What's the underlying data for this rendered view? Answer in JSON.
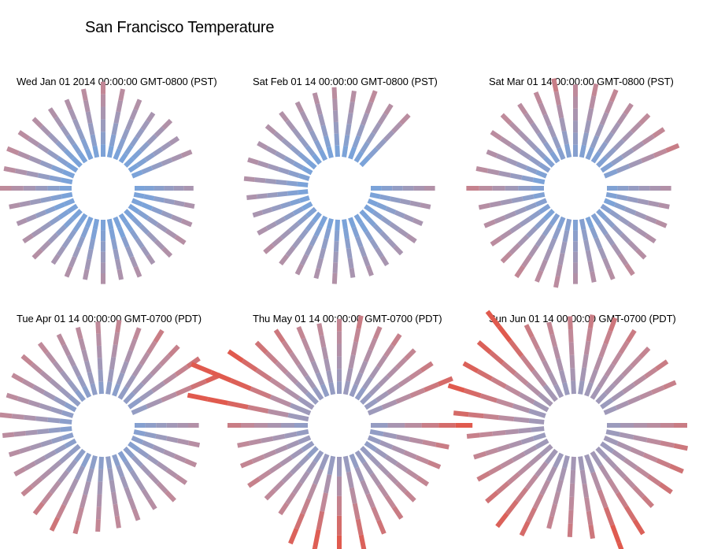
{
  "page": {
    "title": "San Francisco Temperature"
  },
  "colors": {
    "cold": "#7ba3d9",
    "mid": "#9b9bbd",
    "warm": "#c08a9a",
    "hot": "#e05a4e"
  },
  "chart_data": [
    {
      "type": "radial-bar",
      "title": "Wed Jan 01 2014 00:00:00 GMT-0800 (PST)",
      "days": 31,
      "min_temp": [
        46,
        45,
        44,
        46,
        46,
        45,
        44,
        45,
        46,
        45,
        46,
        46,
        45,
        45,
        44,
        46,
        47,
        46,
        45,
        46,
        45,
        46,
        46,
        47,
        47,
        46,
        47,
        46,
        45,
        46,
        47
      ],
      "max_temp": [
        58,
        59,
        60,
        61,
        60,
        58,
        60,
        59,
        60,
        59,
        60,
        58,
        61,
        60,
        59,
        60,
        63,
        62,
        63,
        62,
        61,
        60,
        60,
        62,
        64,
        62,
        60,
        58,
        60,
        58,
        60
      ]
    },
    {
      "type": "radial-bar",
      "title": "Sat Feb 01 14 00:00:00 GMT-0800 (PST)",
      "days": 28,
      "min_temp": [
        47,
        47,
        46,
        47,
        46,
        45,
        46,
        46,
        47,
        47,
        46,
        47,
        48,
        47,
        46,
        46,
        47,
        48,
        47,
        46,
        47,
        47,
        46,
        47,
        47,
        46,
        47,
        46
      ],
      "max_temp": [
        60,
        59,
        58,
        59,
        58,
        58,
        59,
        58,
        60,
        59,
        60,
        60,
        61,
        59,
        58,
        59,
        60,
        60,
        59,
        60,
        60,
        60,
        61,
        62,
        61,
        63,
        61,
        62
      ]
    },
    {
      "type": "radial-bar",
      "title": "Sat Mar 01 14 00:00:00 GMT-0800 (PST)",
      "days": 31,
      "min_temp": [
        48,
        48,
        47,
        49,
        48,
        48,
        47,
        49,
        48,
        49,
        48,
        48,
        47,
        48,
        49,
        48,
        48,
        47,
        48,
        49,
        48,
        48,
        49,
        48,
        49,
        48,
        48,
        48,
        48,
        48,
        48
      ],
      "max_temp": [
        60,
        60,
        61,
        60,
        61,
        63,
        61,
        60,
        60,
        62,
        62,
        64,
        63,
        62,
        61,
        61,
        65,
        62,
        60,
        62,
        63,
        62,
        63,
        66,
        63,
        64,
        64,
        62,
        63,
        64,
        66
      ]
    },
    {
      "type": "radial-bar",
      "title": "Tue Apr 01 14 00:00:00 GMT-0700 (PDT)",
      "days": 30,
      "min_temp": [
        49,
        49,
        50,
        49,
        50,
        49,
        50,
        51,
        50,
        50,
        49,
        50,
        51,
        50,
        50,
        49,
        50,
        51,
        50,
        51,
        50,
        50,
        51,
        50,
        51,
        50,
        51,
        51,
        50,
        51
      ],
      "max_temp": [
        60,
        61,
        62,
        62,
        63,
        61,
        62,
        63,
        64,
        66,
        68,
        66,
        64,
        62,
        61,
        62,
        63,
        62,
        63,
        64,
        63,
        62,
        62,
        63,
        64,
        63,
        66,
        65,
        68,
        72
      ]
    },
    {
      "type": "radial-bar",
      "title": "Thu May 01 14 00:00:00 GMT-0700 (PDT)",
      "days": 31,
      "min_temp": [
        51,
        51,
        52,
        51,
        52,
        52,
        51,
        52,
        52,
        51,
        52,
        52,
        51,
        52,
        53,
        52,
        51,
        52,
        52,
        53,
        52,
        52,
        51,
        52,
        52,
        53,
        52,
        51,
        52,
        52,
        53
      ],
      "max_temp": [
        74,
        66,
        65,
        64,
        64,
        66,
        68,
        72,
        80,
        78,
        72,
        64,
        63,
        65,
        64,
        63,
        66,
        82,
        84,
        74,
        68,
        67,
        64,
        63,
        64,
        66,
        64,
        65,
        64,
        66,
        70
      ]
    },
    {
      "type": "radial-bar",
      "title": "Sun Jun 01 14 00:00:00 GMT-0700 (PDT)",
      "days": 30,
      "min_temp": [
        53,
        53,
        54,
        53,
        54,
        54,
        53,
        54,
        55,
        54,
        53,
        54,
        55,
        54,
        53,
        54,
        54,
        53,
        54,
        55,
        54,
        54,
        53,
        54,
        53,
        54,
        55,
        54,
        53,
        54
      ],
      "max_temp": [
        66,
        67,
        68,
        68,
        66,
        72,
        78,
        67,
        66,
        64,
        70,
        72,
        68,
        66,
        64,
        65,
        70,
        74,
        72,
        72,
        78,
        66,
        64,
        65,
        66,
        67,
        66,
        64,
        66,
        65
      ]
    }
  ]
}
